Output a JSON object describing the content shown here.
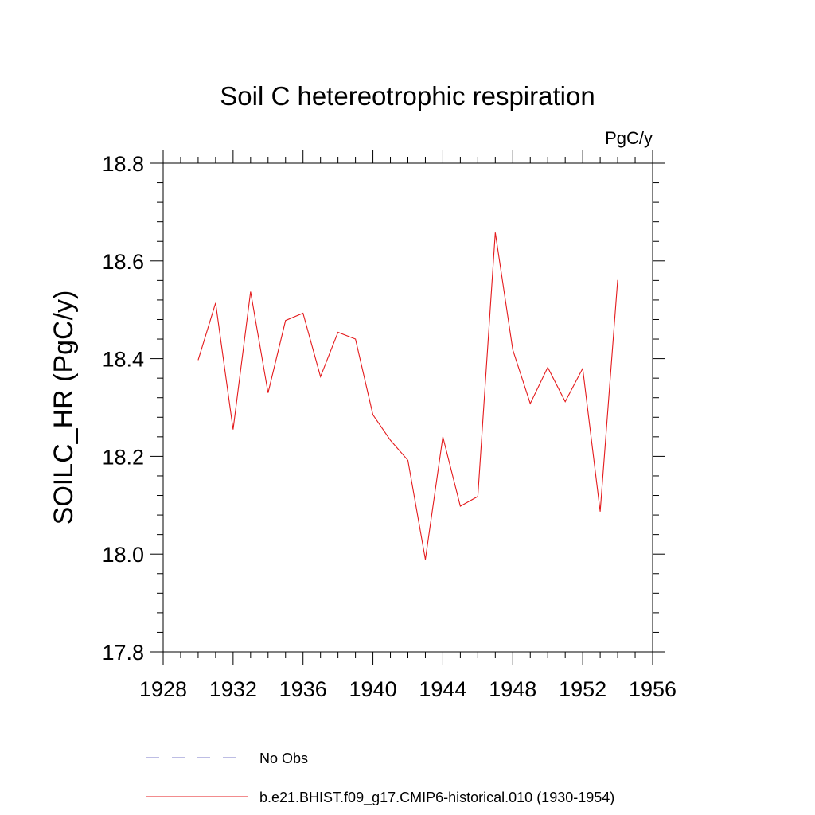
{
  "chart_data": {
    "type": "line",
    "title": "Soil C hetereotrophic respiration",
    "units_label": "PgC/y",
    "ylabel": "SOILC_HR  (PgC/y)",
    "xlabel": "",
    "xlim": [
      1928,
      1956
    ],
    "ylim": [
      17.8,
      18.8
    ],
    "x_ticks": [
      1928,
      1932,
      1936,
      1940,
      1944,
      1948,
      1952,
      1956
    ],
    "x_tick_labels": [
      "1928",
      "1932",
      "1936",
      "1940",
      "1944",
      "1948",
      "1952",
      "1956"
    ],
    "y_ticks": [
      17.8,
      18.0,
      18.2,
      18.4,
      18.6,
      18.8
    ],
    "y_tick_labels": [
      "17.8",
      "18.0",
      "18.2",
      "18.4",
      "18.6",
      "18.8"
    ],
    "grid": false,
    "series": [
      {
        "name": "b.e21.BHIST.f09_g17.CMIP6-historical.010 (1930-1954)",
        "color": "#e41a1c",
        "style": "solid",
        "x": [
          1930,
          1931,
          1932,
          1933,
          1934,
          1935,
          1936,
          1937,
          1938,
          1939,
          1940,
          1941,
          1942,
          1943,
          1944,
          1945,
          1946,
          1947,
          1948,
          1949,
          1950,
          1951,
          1952,
          1953,
          1954
        ],
        "values": [
          18.397,
          18.514,
          18.255,
          18.537,
          18.33,
          18.478,
          18.493,
          18.363,
          18.454,
          18.44,
          18.285,
          18.233,
          18.192,
          17.989,
          18.24,
          18.098,
          18.118,
          18.658,
          18.418,
          18.308,
          18.382,
          18.312,
          18.38,
          18.087,
          18.561
        ]
      }
    ],
    "legend": [
      {
        "label": "No Obs",
        "color": "#7b7bc8",
        "style": "dashed"
      },
      {
        "label": "b.e21.BHIST.f09_g17.CMIP6-historical.010 (1930-1954)",
        "color": "#e41a1c",
        "style": "solid"
      }
    ],
    "legend_position": "bottom"
  }
}
